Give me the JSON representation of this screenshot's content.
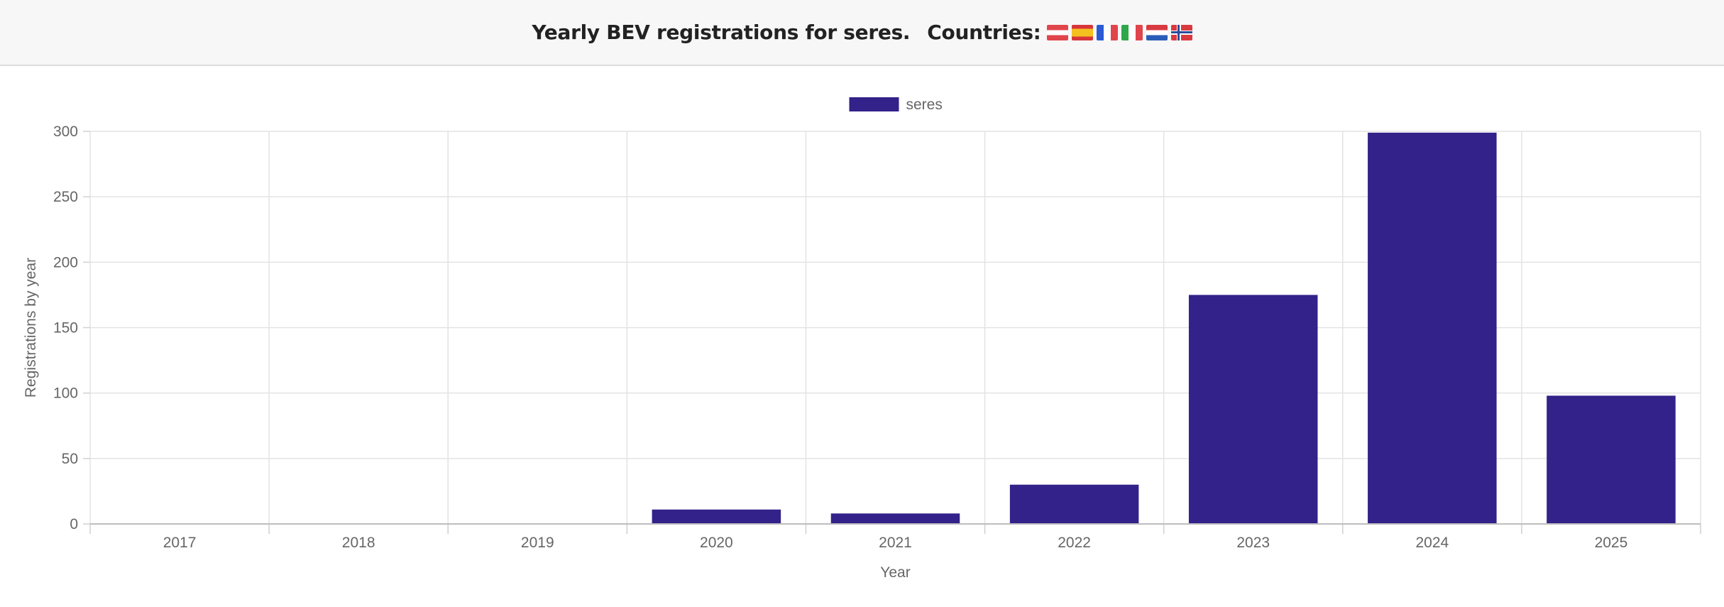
{
  "header": {
    "title": "Yearly BEV registrations for seres.",
    "countries_label": "Countries:",
    "flags": [
      {
        "code": "AT",
        "icon": "austria-flag-icon"
      },
      {
        "code": "ES",
        "icon": "spain-flag-icon"
      },
      {
        "code": "FR",
        "icon": "france-flag-icon"
      },
      {
        "code": "IT",
        "icon": "italy-flag-icon"
      },
      {
        "code": "NL",
        "icon": "netherlands-flag-icon"
      },
      {
        "code": "NO",
        "icon": "norway-flag-icon"
      }
    ]
  },
  "chart_data": {
    "type": "bar",
    "title": "",
    "xlabel": "Year",
    "ylabel": "Registrations by year",
    "categories": [
      "2017",
      "2018",
      "2019",
      "2020",
      "2021",
      "2022",
      "2023",
      "2024",
      "2025"
    ],
    "series": [
      {
        "name": "seres",
        "color": "#322289",
        "values": [
          0,
          0,
          0,
          11,
          8,
          30,
          175,
          299,
          98
        ]
      }
    ],
    "ylim": [
      0,
      300
    ],
    "yticks": [
      0,
      50,
      100,
      150,
      200,
      250,
      300
    ],
    "grid": true,
    "legend": "top-center"
  }
}
